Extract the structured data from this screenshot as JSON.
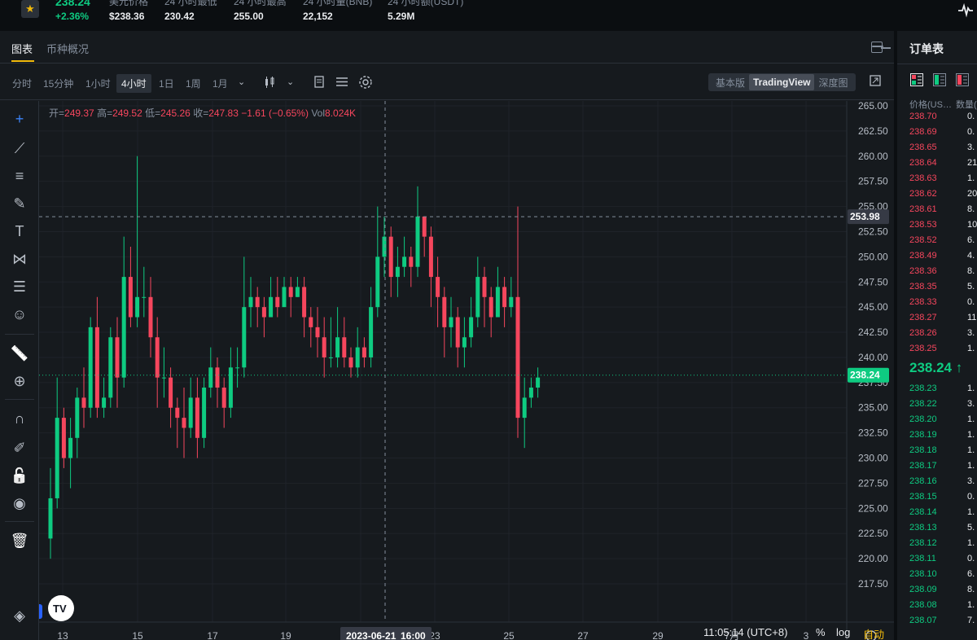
{
  "ticker": {
    "price": "238.24",
    "change": "+2.36%",
    "stats": [
      {
        "label": "美元价格",
        "value": "$238.36"
      },
      {
        "label": "24 小时最低",
        "value": "230.42"
      },
      {
        "label": "24 小时最高",
        "value": "255.00"
      },
      {
        "label": "24 小时量(BNB)",
        "value": "22,152"
      },
      {
        "label": "24 小时额(USDT)",
        "value": "5.29M"
      }
    ]
  },
  "tabs": [
    "图表",
    "币种概况"
  ],
  "toolbar": {
    "timeframes": [
      "分时",
      "15分钟",
      "1小时",
      "4小时",
      "1日",
      "1周",
      "1月"
    ],
    "active_timeframe": "4小时",
    "views": [
      "基本版",
      "TradingView",
      "深度图"
    ],
    "active_view": "TradingView"
  },
  "ohlc": {
    "open_label": "开=",
    "open": "249.37",
    "high_label": "高=",
    "high": "249.52",
    "low_label": "低=",
    "low": "245.26",
    "close_label": "收=",
    "close": "247.83",
    "change": "−1.61 (−0.65%)",
    "vol_label": "Vol",
    "vol": "8.024K"
  },
  "chart": {
    "y_ticks": [
      "265.00",
      "262.50",
      "260.00",
      "257.50",
      "255.00",
      "252.50",
      "250.00",
      "247.50",
      "245.00",
      "242.50",
      "240.00",
      "237.50",
      "235.00",
      "232.50",
      "230.00",
      "227.50",
      "225.00",
      "222.50",
      "220.00",
      "217.50"
    ],
    "x_ticks": [
      "13",
      "15",
      "17",
      "19",
      "21",
      "23",
      "25",
      "27",
      "29",
      "7月",
      "3"
    ],
    "crosshair_price": "253.98",
    "crosshair_date": "2023-06-21",
    "crosshair_time": "16:00",
    "last_price": "238.24"
  },
  "chart_data": {
    "type": "candlestick",
    "x_ticks": [
      "13",
      "15",
      "17",
      "19",
      "21",
      "23",
      "25",
      "27",
      "29",
      "7月",
      "3"
    ],
    "ylim": [
      216,
      266
    ],
    "candles_approx": [
      [
        222,
        226,
        220,
        229
      ],
      [
        226,
        234,
        225,
        238
      ],
      [
        234,
        230,
        229,
        235
      ],
      [
        230,
        232,
        227,
        234
      ],
      [
        232,
        236,
        230,
        237
      ],
      [
        236,
        235,
        233,
        239
      ],
      [
        235,
        243,
        234,
        244
      ],
      [
        243,
        235,
        234,
        246
      ],
      [
        235,
        236,
        234,
        238
      ],
      [
        236,
        242,
        235,
        243
      ],
      [
        242,
        238,
        235,
        244
      ],
      [
        238,
        248,
        237,
        252
      ],
      [
        248,
        244,
        243,
        251
      ],
      [
        244,
        246,
        243,
        260
      ],
      [
        246,
        246,
        244,
        249
      ],
      [
        246,
        242,
        240,
        248
      ],
      [
        242,
        238,
        235,
        244
      ],
      [
        238,
        238,
        236,
        241
      ],
      [
        238,
        235,
        233,
        239
      ],
      [
        235,
        234,
        231,
        236
      ],
      [
        234,
        233,
        230,
        237
      ],
      [
        233,
        236,
        232,
        238
      ],
      [
        236,
        232,
        230,
        238
      ],
      [
        232,
        237,
        231,
        238
      ],
      [
        237,
        239,
        236,
        241
      ],
      [
        239,
        237,
        235,
        240
      ],
      [
        237,
        235,
        233,
        238
      ],
      [
        235,
        239,
        234,
        241
      ],
      [
        239,
        239,
        237,
        241
      ],
      [
        239,
        245,
        238,
        250
      ],
      [
        245,
        246,
        243,
        248
      ],
      [
        246,
        245,
        243,
        247
      ],
      [
        245,
        244,
        242,
        246
      ],
      [
        244,
        246,
        244,
        248
      ],
      [
        246,
        245,
        244,
        248
      ],
      [
        245,
        247,
        245,
        248
      ],
      [
        247,
        246,
        244,
        248
      ],
      [
        246,
        247,
        246,
        248
      ],
      [
        247,
        244,
        242,
        248
      ],
      [
        244,
        243,
        241,
        245
      ],
      [
        243,
        242,
        240,
        245
      ],
      [
        242,
        240,
        238,
        244
      ],
      [
        240,
        240,
        239,
        244
      ],
      [
        240,
        242,
        239,
        245
      ],
      [
        242,
        240,
        239,
        244
      ],
      [
        240,
        239,
        238,
        241
      ],
      [
        239,
        241,
        238,
        243
      ],
      [
        241,
        240,
        239,
        242
      ],
      [
        240,
        245,
        239,
        247
      ],
      [
        245,
        250,
        244,
        255
      ],
      [
        250,
        252,
        248,
        254
      ],
      [
        252,
        248,
        246,
        253
      ],
      [
        248,
        249,
        246,
        251
      ],
      [
        249,
        250,
        248,
        252
      ],
      [
        250,
        249,
        247,
        251
      ],
      [
        249,
        254,
        248,
        257
      ],
      [
        254,
        252,
        250,
        254
      ],
      [
        252,
        248,
        245,
        253
      ],
      [
        248,
        246,
        243,
        250
      ],
      [
        246,
        243,
        240,
        247
      ],
      [
        243,
        244,
        241,
        246
      ],
      [
        244,
        241,
        239,
        245
      ],
      [
        241,
        242,
        239,
        244
      ],
      [
        242,
        244,
        241,
        246
      ],
      [
        244,
        248,
        243,
        250
      ],
      [
        248,
        246,
        243,
        249
      ],
      [
        246,
        244,
        242,
        247
      ],
      [
        244,
        247,
        244,
        249
      ],
      [
        247,
        245,
        243,
        248
      ],
      [
        245,
        246,
        244,
        248
      ],
      [
        246,
        234,
        232,
        255
      ],
      [
        234,
        236,
        231,
        238
      ],
      [
        236,
        237,
        235,
        238
      ],
      [
        237,
        238,
        236,
        239
      ]
    ]
  },
  "drawing_tools": [
    "crosshair-icon",
    "trend-line-icon",
    "horizontal-lines-icon",
    "brush-icon",
    "text-icon",
    "pattern-icon",
    "fib-icon",
    "emoji-icon",
    "ruler-icon",
    "zoom-in-icon",
    "magnet-icon",
    "lock-draw-icon",
    "lock-icon",
    "eye-icon",
    "trash-icon"
  ],
  "bottom": {
    "time": "11:05:14 (UTC+8)",
    "percent": "%",
    "log": "log",
    "auto": "自动"
  },
  "orderbook": {
    "title": "订单表",
    "head_price": "价格(US…",
    "head_qty": "数量(",
    "asks": [
      {
        "p": "238.70",
        "q": "0."
      },
      {
        "p": "238.69",
        "q": "0."
      },
      {
        "p": "238.65",
        "q": "3."
      },
      {
        "p": "238.64",
        "q": "21."
      },
      {
        "p": "238.63",
        "q": "1."
      },
      {
        "p": "238.62",
        "q": "20."
      },
      {
        "p": "238.61",
        "q": "8."
      },
      {
        "p": "238.53",
        "q": "10."
      },
      {
        "p": "238.52",
        "q": "6."
      },
      {
        "p": "238.49",
        "q": "4."
      },
      {
        "p": "238.36",
        "q": "8."
      },
      {
        "p": "238.35",
        "q": "5."
      },
      {
        "p": "238.33",
        "q": "0."
      },
      {
        "p": "238.27",
        "q": "11."
      },
      {
        "p": "238.26",
        "q": "3."
      },
      {
        "p": "238.25",
        "q": "1."
      }
    ],
    "mid": "238.24 ↑",
    "bids": [
      {
        "p": "238.23",
        "q": "1."
      },
      {
        "p": "238.22",
        "q": "3."
      },
      {
        "p": "238.20",
        "q": "1."
      },
      {
        "p": "238.19",
        "q": "1."
      },
      {
        "p": "238.18",
        "q": "1."
      },
      {
        "p": "238.17",
        "q": "1."
      },
      {
        "p": "238.16",
        "q": "3."
      },
      {
        "p": "238.15",
        "q": "0."
      },
      {
        "p": "238.14",
        "q": "1."
      },
      {
        "p": "238.13",
        "q": "5."
      },
      {
        "p": "238.12",
        "q": "1."
      },
      {
        "p": "238.11",
        "q": "0."
      },
      {
        "p": "238.10",
        "q": "6."
      },
      {
        "p": "238.09",
        "q": "8."
      },
      {
        "p": "238.08",
        "q": "1."
      },
      {
        "p": "238.07",
        "q": "7."
      }
    ]
  },
  "colors": {
    "up": "#0ecb81",
    "down": "#f6465d",
    "accent": "#f0b90b"
  }
}
